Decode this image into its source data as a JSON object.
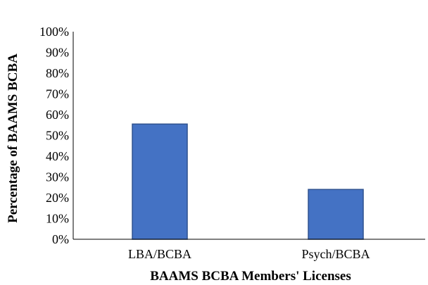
{
  "chart_data": {
    "type": "bar",
    "categories": [
      "LBA/BCBA",
      "Psych/BCBA"
    ],
    "values": [
      55.5,
      24
    ],
    "title": "",
    "xlabel": "BAAMS BCBA Members' Licenses",
    "ylabel": "Percentage of BAAMS BCBA",
    "ylim": [
      0,
      100
    ],
    "yticks": [
      "0%",
      "10%",
      "20%",
      "30%",
      "40%",
      "50%",
      "60%",
      "70%",
      "80%",
      "90%",
      "100%"
    ],
    "grid": false,
    "legend": "none",
    "bar_color": "#4472C4",
    "bar_edge_color": "#2F528F"
  }
}
